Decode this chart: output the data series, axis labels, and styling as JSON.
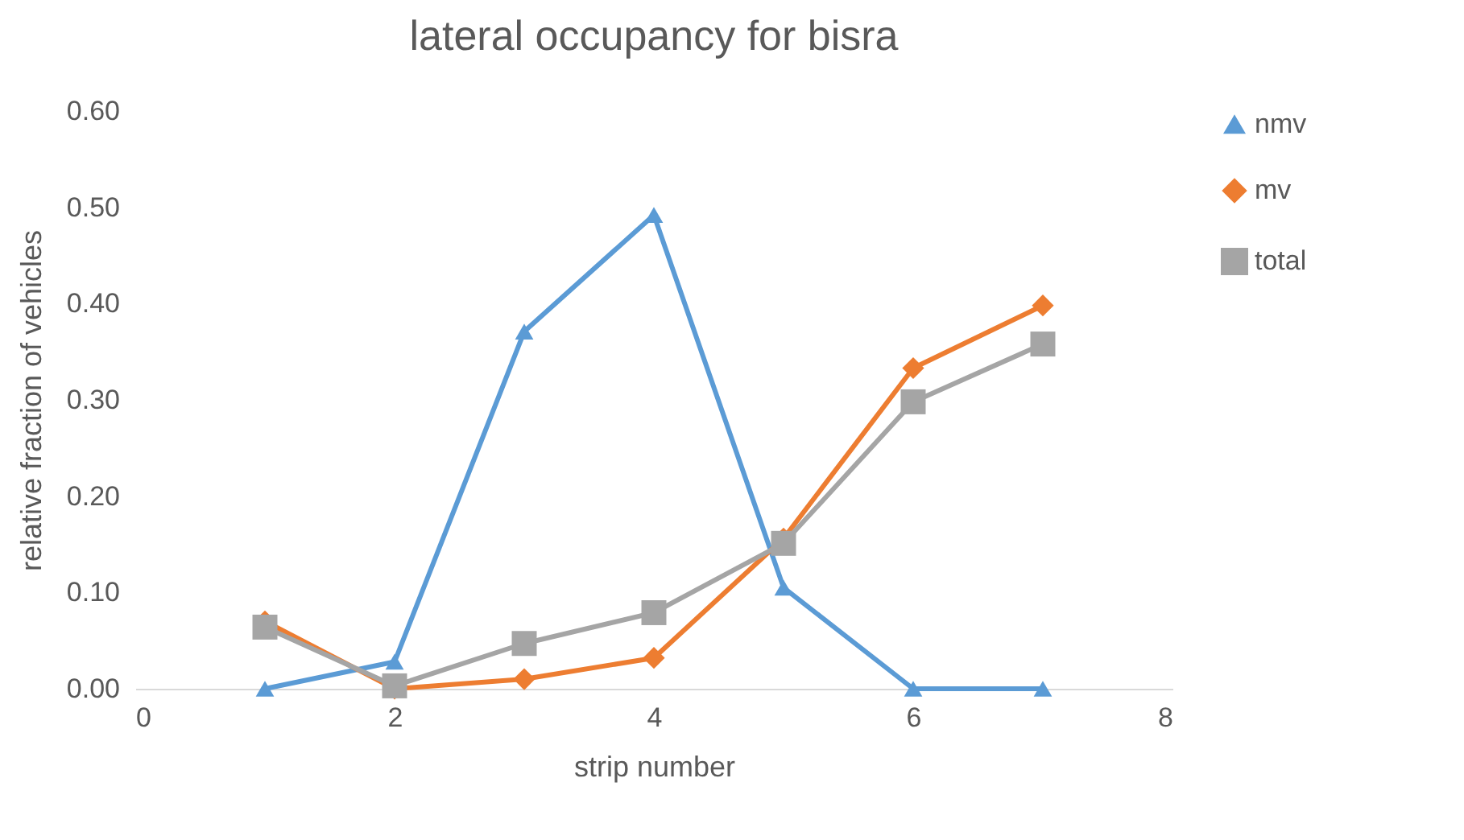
{
  "chart_data": {
    "type": "line",
    "title": "lateral occupancy for bisra",
    "xlabel": "strip number",
    "ylabel": "relative fraction of vehicles",
    "x": [
      1,
      2,
      3,
      4,
      5,
      6,
      7
    ],
    "series": [
      {
        "name": "nmv",
        "color": "#5b9bd5",
        "marker": "triangle",
        "values": [
          0,
          0.028,
          0.371,
          0.492,
          0.105,
          0,
          0
        ]
      },
      {
        "name": "mv",
        "color": "#ed7d31",
        "marker": "diamond",
        "values": [
          0.07,
          0,
          0.01,
          0.032,
          0.156,
          0.333,
          0.398
        ]
      },
      {
        "name": "total",
        "color": "#a5a5a5",
        "marker": "square",
        "values": [
          0.064,
          0.003,
          0.047,
          0.079,
          0.151,
          0.298,
          0.358
        ]
      }
    ],
    "xlim": [
      0,
      8
    ],
    "xticks": [
      0,
      2,
      4,
      6,
      8
    ],
    "ylim": [
      0,
      0.6
    ],
    "yticks": [
      {
        "value": 0,
        "label": "0.00"
      },
      {
        "value": 0.1,
        "label": "0.10"
      },
      {
        "value": 0.2,
        "label": "0.20"
      },
      {
        "value": 0.3,
        "label": "0.30"
      },
      {
        "value": 0.4,
        "label": "0.40"
      },
      {
        "value": 0.5,
        "label": "0.50"
      },
      {
        "value": 0.6,
        "label": "0.60"
      }
    ],
    "grid": false,
    "legend": "right",
    "line_style": "solid"
  }
}
